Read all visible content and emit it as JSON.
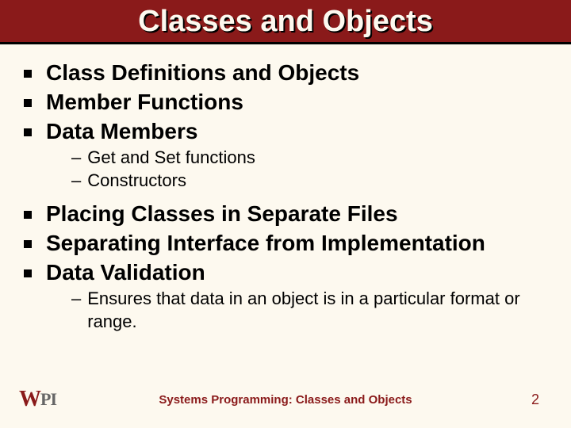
{
  "slide": {
    "background_color": "#fdf9ef",
    "title_bar_color": "#8a1a1a",
    "title_text_color": "#fdf9ef",
    "title_shadow_color": "#000000",
    "title_fontsize": 38,
    "body_fontsize": 28,
    "sub_fontsize": 22,
    "footer_fontsize": 15,
    "accent_color": "#8a1a1a",
    "text_color": "#000000"
  },
  "title": "Classes and Objects",
  "bullets": [
    {
      "text": "Class Definitions and Objects",
      "subs": []
    },
    {
      "text": "Member Functions",
      "subs": []
    },
    {
      "text": "Data Members",
      "subs": [
        {
          "text": "Get and Set functions"
        },
        {
          "text": "Constructors"
        }
      ]
    },
    {
      "text": "Placing Classes in Separate Files",
      "subs": []
    },
    {
      "text": "Separating Interface from Implementation",
      "subs": []
    },
    {
      "text": "Data Validation",
      "subs": [
        {
          "text": "Ensures that data in an object is in a particular format or range."
        }
      ]
    }
  ],
  "footer": {
    "logo_left": "W",
    "logo_right": "PI",
    "center": "Systems Programming: Classes and Objects",
    "page": "2"
  }
}
